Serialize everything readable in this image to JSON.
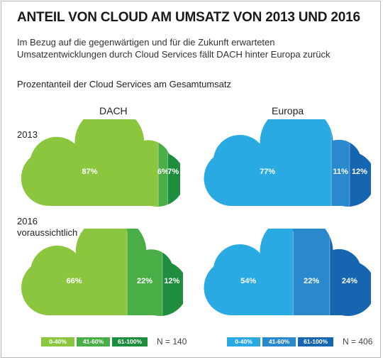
{
  "title": "ANTEIL VON CLOUD AM UMSATZ VON 2013 UND 2016",
  "subtitle": "Im Bezug auf die gegenwärtigen und für die Zukunft erwarteten Umsatzentwicklungen durch Cloud Services fällt DACH hinter Europa zurück",
  "chart_heading": "Prozentanteil der Cloud Services am Gesamtumsatz",
  "columns": [
    "DACH",
    "Europa"
  ],
  "rows": [
    "2013",
    "2016 voraussichtlich"
  ],
  "chart_data": {
    "type": "bar",
    "title": "Prozentanteil der Cloud Services am Gesamtumsatz",
    "categories": [
      "0-40%",
      "41-60%",
      "61-100%"
    ],
    "panels": [
      {
        "region": "DACH",
        "year": "2013",
        "values": [
          87,
          6,
          7
        ],
        "labels": [
          "87%",
          "6%",
          "7%"
        ]
      },
      {
        "region": "Europa",
        "year": "2013",
        "values": [
          77,
          11,
          12
        ],
        "labels": [
          "77%",
          "11%",
          "12%"
        ]
      },
      {
        "region": "DACH",
        "year": "2016 voraussichtlich",
        "values": [
          66,
          22,
          12
        ],
        "labels": [
          "66%",
          "22%",
          "12%"
        ]
      },
      {
        "region": "Europa",
        "year": "2016 voraussichtlich",
        "values": [
          54,
          22,
          24
        ],
        "labels": [
          "54%",
          "22%",
          "24%"
        ]
      }
    ]
  },
  "colors": {
    "DACH": [
      "#8cc63f",
      "#4aae46",
      "#1e8e3e"
    ],
    "Europa": [
      "#29aae2",
      "#2a88cc",
      "#1565b0"
    ]
  },
  "legends": [
    {
      "labels": [
        "0-40%",
        "41-60%",
        "61-100%"
      ],
      "n": "N = 140"
    },
    {
      "labels": [
        "0-40%",
        "41-60%",
        "61-100%"
      ],
      "n": "N = 406"
    }
  ]
}
